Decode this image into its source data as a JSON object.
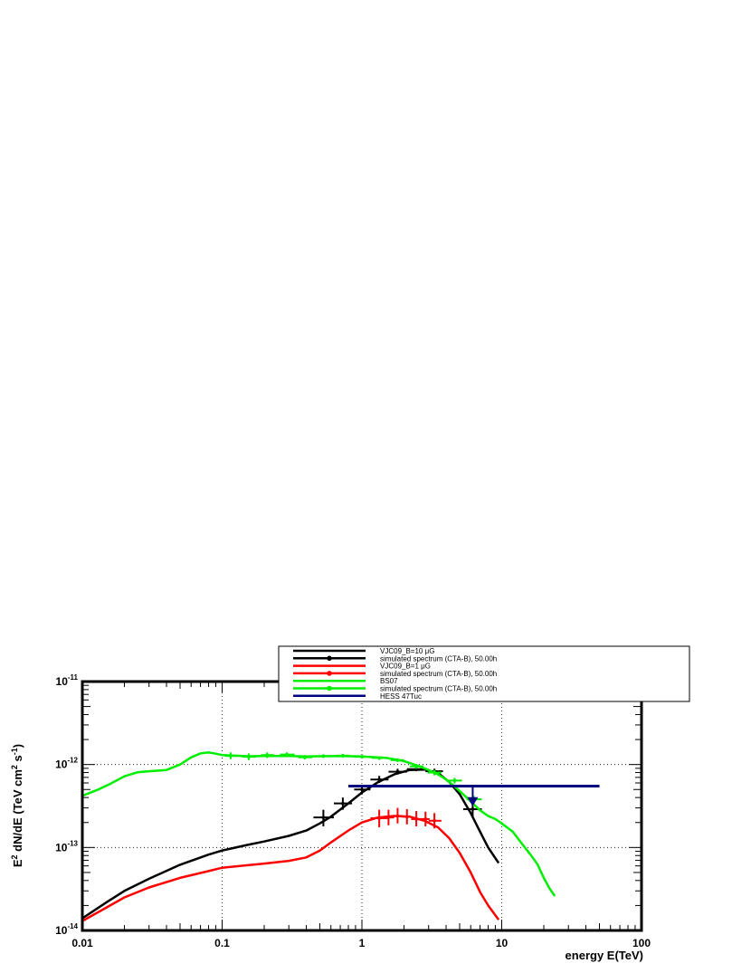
{
  "chart_data": {
    "type": "line",
    "xscale": "log",
    "yscale": "log",
    "xlim": [
      0.01,
      100
    ],
    "ylim": [
      1e-14,
      1e-11
    ],
    "grid": true,
    "legend_position": "top-right",
    "xlabel": "energy E(TeV)",
    "ylabel": {
      "base": "E",
      "sup1": "2",
      "mid": " dN/dE (TeV cm",
      "sup2": "2",
      "mid2": " s",
      "sup3": "-1",
      "end": ")"
    },
    "x_ticks": [
      {
        "value": 0.01,
        "label": "0.01"
      },
      {
        "value": 0.1,
        "label": "0.1"
      },
      {
        "value": 1,
        "label": "1"
      },
      {
        "value": 10,
        "label": "10"
      },
      {
        "value": 100,
        "label": "100"
      }
    ],
    "y_ticks": [
      {
        "value": 1e-14,
        "base": "10",
        "exp": "-14"
      },
      {
        "value": 1e-13,
        "base": "10",
        "exp": "-13"
      },
      {
        "value": 1e-12,
        "base": "10",
        "exp": "-12"
      },
      {
        "value": 1e-11,
        "base": "10",
        "exp": "-11"
      }
    ],
    "legend": [
      {
        "label": "VJC09_B=10 μG",
        "color": "#000000",
        "style": "line"
      },
      {
        "label": "simulated spectrum (CTA-B), 50.00h",
        "color": "#000000",
        "style": "marker"
      },
      {
        "label": "VJC09_B=1 μG",
        "color": "#ff0000",
        "style": "line"
      },
      {
        "label": "simulated spectrum (CTA-B), 50.00h",
        "color": "#ff0000",
        "style": "marker"
      },
      {
        "label": "BS07",
        "color": "#00ee00",
        "style": "line"
      },
      {
        "label": "simulated spectrum (CTA-B), 50.00h",
        "color": "#00ee00",
        "style": "marker"
      },
      {
        "label": "HESS 47Tuc",
        "color": "#000080",
        "style": "line"
      }
    ],
    "series": [
      {
        "name": "VJC09_B=10 μG",
        "kind": "curve",
        "color": "#000000",
        "x": [
          0.01,
          0.015,
          0.02,
          0.03,
          0.05,
          0.08,
          0.1,
          0.15,
          0.2,
          0.3,
          0.4,
          0.5,
          0.6,
          0.8,
          1.0,
          1.3,
          1.7,
          2.2,
          2.8,
          3.5,
          4.2,
          5.0,
          6.0,
          7.0,
          8.0,
          9.5
        ],
        "y": [
          1.4e-14,
          2.2e-14,
          3e-14,
          4.2e-14,
          6.2e-14,
          8.2e-14,
          9.2e-14,
          1.07e-13,
          1.18e-13,
          1.38e-13,
          1.6e-13,
          1.95e-13,
          2.35e-13,
          3.4e-13,
          4.6e-13,
          6.1e-13,
          7.6e-13,
          8.6e-13,
          8.7e-13,
          7.9e-13,
          6.2e-13,
          4.4e-13,
          2.6e-13,
          1.55e-13,
          1e-13,
          6.5e-14
        ]
      },
      {
        "name": "simulated spectrum (CTA-B), 50.00h",
        "kind": "points",
        "color": "#000000",
        "points": [
          {
            "x": 0.53,
            "y": 2.3e-13,
            "xlo": 0.45,
            "xhi": 0.63,
            "ylo": 1.8e-13,
            "yhi": 2.85e-13
          },
          {
            "x": 0.73,
            "y": 3.4e-13,
            "xlo": 0.63,
            "xhi": 0.85,
            "ylo": 2.85e-13,
            "yhi": 4e-13
          },
          {
            "x": 1.0,
            "y": 5e-13,
            "xlo": 0.88,
            "xhi": 1.15,
            "ylo": 4.4e-13,
            "yhi": 5.7e-13
          },
          {
            "x": 1.33,
            "y": 6.6e-13,
            "xlo": 1.15,
            "xhi": 1.55,
            "ylo": 6e-13,
            "yhi": 7.3e-13
          },
          {
            "x": 1.8,
            "y": 8.2e-13,
            "xlo": 1.55,
            "xhi": 2.1,
            "ylo": 7.6e-13,
            "yhi": 8.9e-13
          },
          {
            "x": 2.45,
            "y": 8.8e-13,
            "xlo": 2.1,
            "xhi": 2.8,
            "ylo": 8.3e-13,
            "yhi": 9.4e-13
          },
          {
            "x": 3.3,
            "y": 8.3e-13,
            "xlo": 2.85,
            "xhi": 3.8,
            "ylo": 7.7e-13,
            "yhi": 8.9e-13
          },
          {
            "x": 6.2,
            "y": 2.9e-13,
            "xlo": 5.3,
            "xhi": 7.2,
            "ylo": 2.35e-13,
            "yhi": 3.5e-13
          }
        ]
      },
      {
        "name": "VJC09_B=1 μG",
        "kind": "curve",
        "color": "#ff0000",
        "x": [
          0.01,
          0.015,
          0.02,
          0.03,
          0.05,
          0.08,
          0.1,
          0.15,
          0.2,
          0.3,
          0.4,
          0.5,
          0.6,
          0.8,
          1.0,
          1.3,
          1.7,
          2.2,
          2.8,
          3.5,
          4.2,
          5.0,
          6.0,
          7.0,
          8.0,
          9.5
        ],
        "y": [
          1.3e-14,
          1.9e-14,
          2.5e-14,
          3.3e-14,
          4.3e-14,
          5.2e-14,
          5.7e-14,
          6.1e-14,
          6.4e-14,
          6.9e-14,
          7.6e-14,
          9.2e-14,
          1.15e-13,
          1.6e-13,
          2e-13,
          2.3e-13,
          2.4e-13,
          2.35e-13,
          2.1e-13,
          1.75e-13,
          1.3e-13,
          8.6e-14,
          5e-14,
          2.9e-14,
          2e-14,
          1.35e-14
        ]
      },
      {
        "name": "simulated spectrum (CTA-B), 50.00h",
        "kind": "points",
        "color": "#ff0000",
        "points": [
          {
            "x": 1.33,
            "y": 2.25e-13,
            "xlo": 1.15,
            "xhi": 1.55,
            "ylo": 1.75e-13,
            "yhi": 2.85e-13
          },
          {
            "x": 1.55,
            "y": 2.3e-13,
            "xlo": 1.42,
            "xhi": 1.7,
            "ylo": 1.85e-13,
            "yhi": 2.85e-13
          },
          {
            "x": 1.8,
            "y": 2.4e-13,
            "xlo": 1.68,
            "xhi": 1.95,
            "ylo": 1.95e-13,
            "yhi": 3e-13
          },
          {
            "x": 2.1,
            "y": 2.35e-13,
            "xlo": 1.95,
            "xhi": 2.25,
            "ylo": 1.9e-13,
            "yhi": 2.9e-13
          },
          {
            "x": 2.45,
            "y": 2.2e-13,
            "xlo": 2.25,
            "xhi": 2.7,
            "ylo": 1.8e-13,
            "yhi": 2.75e-13
          },
          {
            "x": 2.85,
            "y": 2.2e-13,
            "xlo": 2.65,
            "xhi": 3.05,
            "ylo": 1.8e-13,
            "yhi": 2.7e-13
          },
          {
            "x": 3.3,
            "y": 2.1e-13,
            "xlo": 3.0,
            "xhi": 3.7,
            "ylo": 1.7e-13,
            "yhi": 2.6e-13
          }
        ]
      },
      {
        "name": "BS07",
        "kind": "curve",
        "color": "#00ee00",
        "x": [
          0.01,
          0.013,
          0.016,
          0.02,
          0.025,
          0.03,
          0.04,
          0.05,
          0.06,
          0.07,
          0.08,
          0.09,
          0.1,
          0.12,
          0.15,
          0.2,
          0.3,
          0.4,
          0.5,
          0.7,
          1.0,
          1.5,
          2.0,
          2.5,
          3.0,
          3.5,
          4.0,
          4.5,
          5.0,
          6.0,
          7.0,
          8.0,
          9.0,
          10.0,
          12.0,
          14.0,
          16.0,
          18.0,
          20.0,
          22.0,
          24.0
        ],
        "y": [
          4.2e-13,
          5e-13,
          5.9e-13,
          7.2e-13,
          8.1e-13,
          8.3e-13,
          8.6e-13,
          1e-12,
          1.22e-12,
          1.36e-12,
          1.4e-12,
          1.35e-12,
          1.3e-12,
          1.28e-12,
          1.26e-12,
          1.27e-12,
          1.27e-12,
          1.25e-12,
          1.26e-12,
          1.27e-12,
          1.25e-12,
          1.2e-12,
          1.1e-12,
          9.7e-13,
          8.6e-13,
          7.6e-13,
          6.6e-13,
          5.6e-13,
          4.8e-13,
          3.6e-13,
          2.8e-13,
          2.4e-13,
          2.2e-13,
          1.95e-13,
          1.55e-13,
          1.1e-13,
          8.3e-14,
          6.3e-14,
          4.3e-14,
          3.2e-14,
          2.6e-14
        ]
      },
      {
        "name": "simulated spectrum (CTA-B), 50.00h",
        "kind": "points",
        "color": "#00ee00",
        "points": [
          {
            "x": 0.115,
            "y": 1.27e-12,
            "xlo": 0.105,
            "xhi": 0.13,
            "ylo": 1.16e-12,
            "yhi": 1.4e-12
          },
          {
            "x": 0.155,
            "y": 1.24e-12,
            "xlo": 0.14,
            "xhi": 0.175,
            "ylo": 1.13e-12,
            "yhi": 1.36e-12
          },
          {
            "x": 0.21,
            "y": 1.3e-12,
            "xlo": 0.19,
            "xhi": 0.235,
            "ylo": 1.2e-12,
            "yhi": 1.4e-12
          },
          {
            "x": 0.29,
            "y": 1.32e-12,
            "xlo": 0.26,
            "xhi": 0.33,
            "ylo": 1.24e-12,
            "yhi": 1.4e-12
          },
          {
            "x": 0.39,
            "y": 1.22e-12,
            "xlo": 0.35,
            "xhi": 0.44,
            "ylo": 1.15e-12,
            "yhi": 1.3e-12
          },
          {
            "x": 0.53,
            "y": 1.26e-12,
            "xlo": 0.47,
            "xhi": 0.6,
            "ylo": 1.2e-12,
            "yhi": 1.33e-12
          },
          {
            "x": 0.73,
            "y": 1.28e-12,
            "xlo": 0.65,
            "xhi": 0.82,
            "ylo": 1.22e-12,
            "yhi": 1.34e-12
          },
          {
            "x": 1.0,
            "y": 1.24e-12,
            "xlo": 0.88,
            "xhi": 1.12,
            "ylo": 1.18e-12,
            "yhi": 1.3e-12
          },
          {
            "x": 1.33,
            "y": 1.2e-12,
            "xlo": 1.18,
            "xhi": 1.5,
            "ylo": 1.14e-12,
            "yhi": 1.26e-12
          },
          {
            "x": 1.8,
            "y": 1.13e-12,
            "xlo": 1.6,
            "xhi": 2.0,
            "ylo": 1.07e-12,
            "yhi": 1.19e-12
          },
          {
            "x": 2.45,
            "y": 9.5e-13,
            "xlo": 2.2,
            "xhi": 2.75,
            "ylo": 8.9e-13,
            "yhi": 1.01e-12
          },
          {
            "x": 3.3,
            "y": 8e-13,
            "xlo": 2.95,
            "xhi": 3.7,
            "ylo": 7.4e-13,
            "yhi": 8.6e-13
          },
          {
            "x": 4.6,
            "y": 6.4e-13,
            "xlo": 4.0,
            "xhi": 5.2,
            "ylo": 5.9e-13,
            "yhi": 6.9e-13
          },
          {
            "x": 6.3,
            "y": 3.8e-13,
            "xlo": 5.6,
            "xhi": 7.2,
            "ylo": 3.4e-13,
            "yhi": 4.2e-13
          }
        ]
      },
      {
        "name": "HESS 47Tuc",
        "kind": "upper_limit",
        "color": "#000080",
        "x_from": 0.8,
        "x_to": 50,
        "y": 5.5e-13,
        "arrow_x": 6.2,
        "arrow_to": 3.3e-13
      }
    ]
  }
}
